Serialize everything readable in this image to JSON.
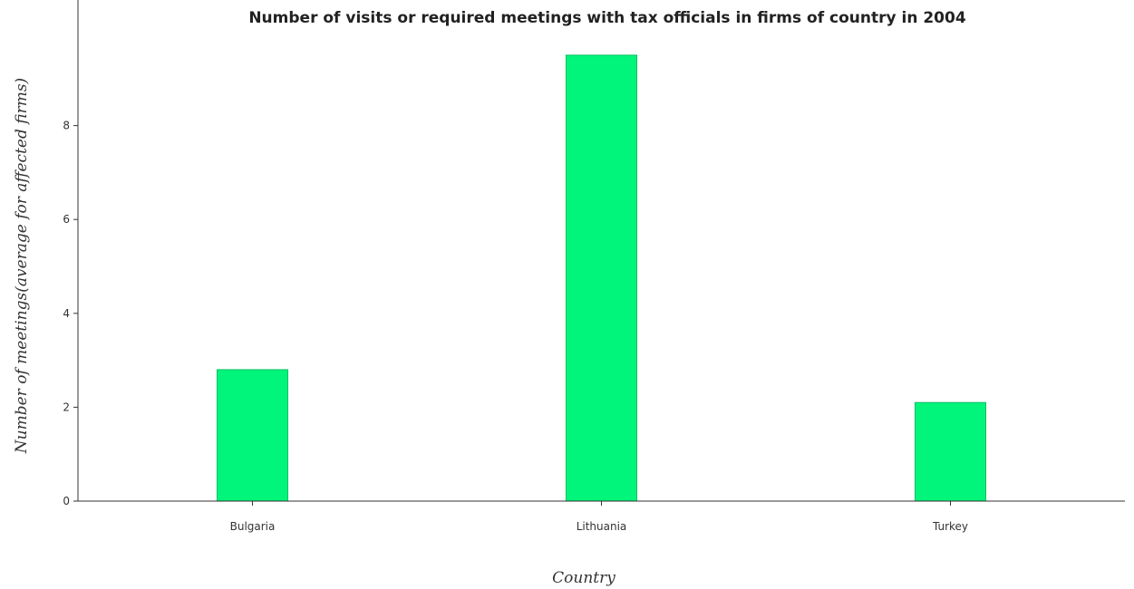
{
  "chart_data": {
    "type": "bar",
    "title": "Number of visits or required meetings with tax officials in firms of country in 2004",
    "xlabel": "Country",
    "ylabel": "Number of meetings(average for affected firms)",
    "categories": [
      "Bulgaria",
      "Lithuania",
      "Turkey"
    ],
    "values": [
      2.8,
      9.5,
      2.1
    ],
    "ylim": [
      0,
      10
    ],
    "yticks": [
      0,
      2,
      4,
      6,
      8
    ],
    "bar_color": "#00f57a",
    "bar_stroke": "#00c060",
    "grid": false,
    "legend": "none"
  }
}
